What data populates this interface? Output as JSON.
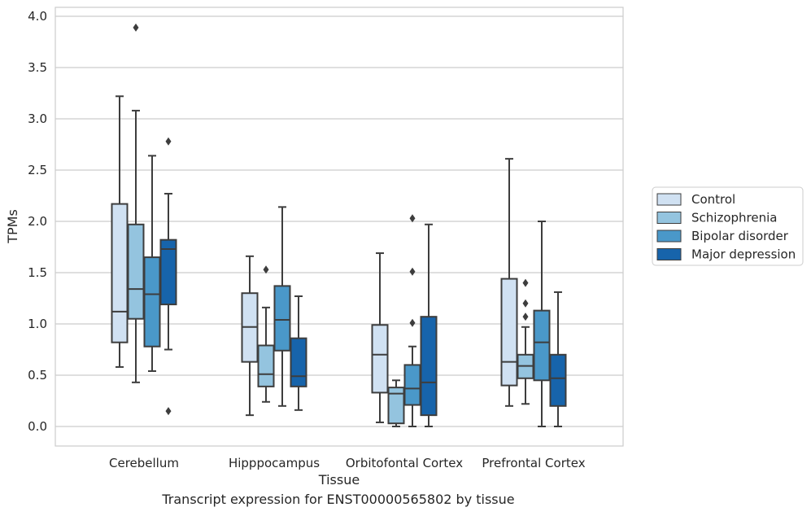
{
  "caption": "Transcript expression for ENST00000565802 by tissue",
  "chart_data": {
    "type": "box",
    "title": "",
    "xlabel": "Tissue",
    "ylabel": "TPMs",
    "categories": [
      "Cerebellum",
      "Hipppocampus",
      "Orbitofontal Cortex",
      "Prefrontal Cortex"
    ],
    "ylim": [
      -0.19,
      4.09
    ],
    "yticks": [
      "0.0",
      "0.5",
      "1.0",
      "1.5",
      "2.0",
      "2.5",
      "3.0",
      "3.5",
      "4.0"
    ],
    "grid": "horizontal",
    "legend_position": "right",
    "series": [
      {
        "name": "Control",
        "color": "#d0e1f2",
        "boxes": [
          {
            "whislo": 0.58,
            "q1": 0.82,
            "med": 1.12,
            "q3": 2.17,
            "whishi": 3.22,
            "fliers": []
          },
          {
            "whislo": 0.11,
            "q1": 0.63,
            "med": 0.97,
            "q3": 1.3,
            "whishi": 1.66,
            "fliers": []
          },
          {
            "whislo": 0.04,
            "q1": 0.33,
            "med": 0.7,
            "q3": 0.99,
            "whishi": 1.69,
            "fliers": []
          },
          {
            "whislo": 0.2,
            "q1": 0.4,
            "med": 0.63,
            "q3": 1.44,
            "whishi": 2.61,
            "fliers": []
          }
        ]
      },
      {
        "name": "Schizophrenia",
        "color": "#94c4df",
        "boxes": [
          {
            "whislo": 0.43,
            "q1": 1.05,
            "med": 1.34,
            "q3": 1.97,
            "whishi": 3.08,
            "fliers": [
              3.89
            ]
          },
          {
            "whislo": 0.24,
            "q1": 0.39,
            "med": 0.51,
            "q3": 0.79,
            "whishi": 1.16,
            "fliers": [
              1.53
            ]
          },
          {
            "whislo": 0.0,
            "q1": 0.03,
            "med": 0.32,
            "q3": 0.38,
            "whishi": 0.45,
            "fliers": []
          },
          {
            "whislo": 0.22,
            "q1": 0.47,
            "med": 0.59,
            "q3": 0.7,
            "whishi": 0.97,
            "fliers": [
              1.07,
              1.2,
              1.4
            ]
          }
        ]
      },
      {
        "name": "Bipolar disorder",
        "color": "#4a98c9",
        "boxes": [
          {
            "whislo": 0.54,
            "q1": 0.78,
            "med": 1.29,
            "q3": 1.65,
            "whishi": 2.64,
            "fliers": []
          },
          {
            "whislo": 0.2,
            "q1": 0.74,
            "med": 1.04,
            "q3": 1.37,
            "whishi": 2.14,
            "fliers": []
          },
          {
            "whislo": 0.0,
            "q1": 0.21,
            "med": 0.37,
            "q3": 0.6,
            "whishi": 0.78,
            "fliers": [
              1.01,
              1.51,
              2.03
            ]
          },
          {
            "whislo": 0.0,
            "q1": 0.45,
            "med": 0.82,
            "q3": 1.13,
            "whishi": 2.0,
            "fliers": []
          }
        ]
      },
      {
        "name": "Major depression",
        "color": "#1764ab",
        "boxes": [
          {
            "whislo": 0.75,
            "q1": 1.19,
            "med": 1.73,
            "q3": 1.82,
            "whishi": 2.27,
            "fliers": [
              0.15,
              2.78
            ]
          },
          {
            "whislo": 0.16,
            "q1": 0.39,
            "med": 0.49,
            "q3": 0.86,
            "whishi": 1.27,
            "fliers": []
          },
          {
            "whislo": 0.0,
            "q1": 0.11,
            "med": 0.43,
            "q3": 1.07,
            "whishi": 1.97,
            "fliers": []
          },
          {
            "whislo": 0.0,
            "q1": 0.2,
            "med": 0.47,
            "q3": 0.7,
            "whishi": 1.31,
            "fliers": []
          }
        ]
      }
    ]
  }
}
